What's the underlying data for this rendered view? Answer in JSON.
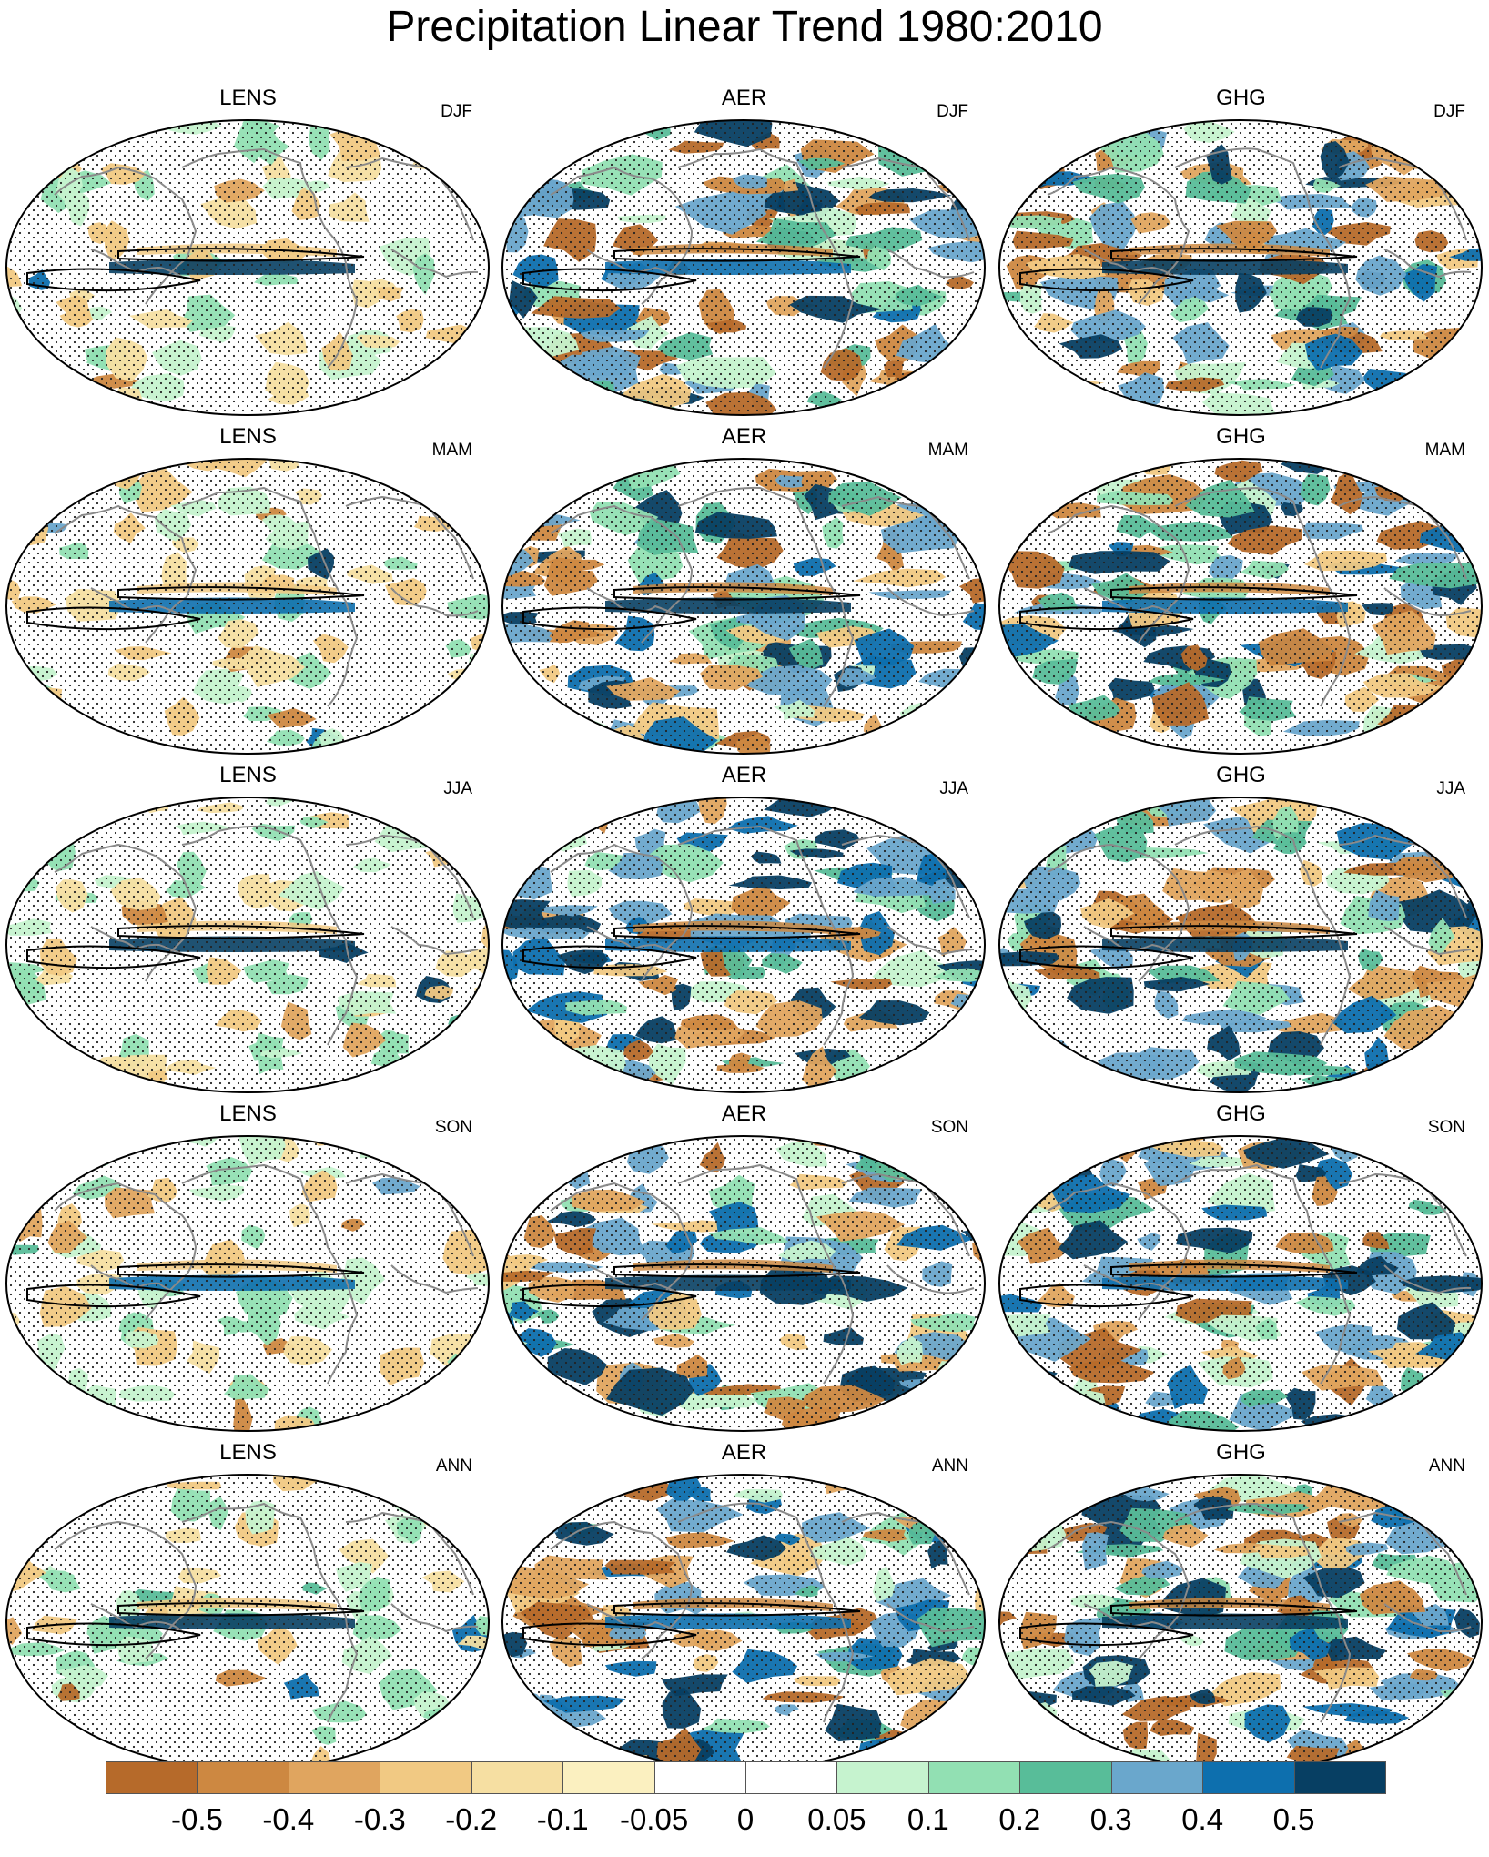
{
  "title": "Precipitation Linear Trend 1980:2010",
  "columns": [
    "LENS",
    "AER",
    "GHG"
  ],
  "rows": [
    "DJF",
    "MAM",
    "JJA",
    "SON",
    "ANN"
  ],
  "colorbar": {
    "ticks": [
      "-0.5",
      "-0.4",
      "-0.3",
      "-0.2",
      "-0.1",
      "-0.05",
      "0",
      "0.05",
      "0.1",
      "0.2",
      "0.3",
      "0.4",
      "0.5"
    ],
    "colors": [
      "#b66a2a",
      "#cd8841",
      "#e0a55f",
      "#f1c983",
      "#f6dfa2",
      "#fbf0c0",
      "#ffffff",
      "#ffffff",
      "#c6f3cf",
      "#92e0b3",
      "#58bd99",
      "#6aa7cc",
      "#0d6fae",
      "#073f63"
    ]
  }
}
